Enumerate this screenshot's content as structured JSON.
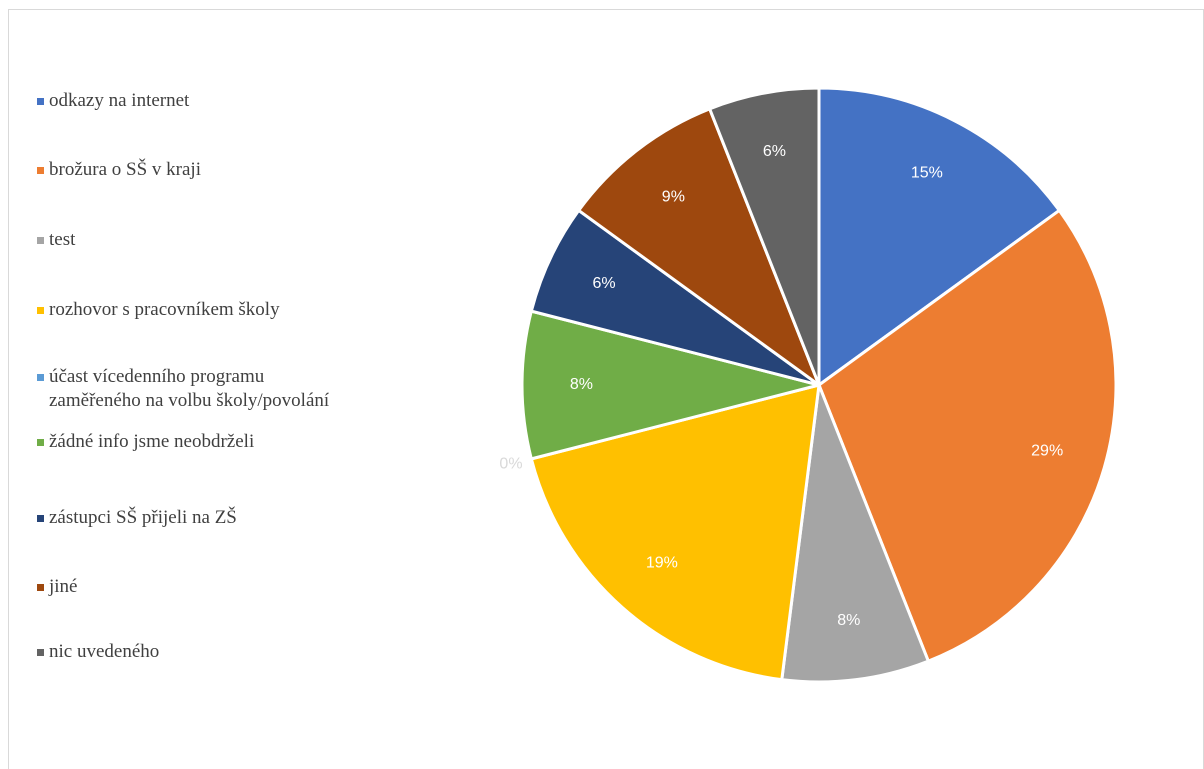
{
  "chart_data": {
    "type": "pie",
    "categories": [
      "odkazy na internet",
      "brožura o SŠ v kraji",
      "test",
      "rozhovor s pracovníkem školy",
      "účast vícedenního programu\nzaměřeného na volbu školy/povolání",
      "žádné info jsme neobdrželi",
      "zástupci SŠ přijeli na ZŠ",
      "jiné",
      "nic uvedeného"
    ],
    "values": [
      15,
      29,
      8,
      19,
      0,
      8,
      6,
      9,
      6
    ],
    "data_labels": [
      "15%",
      "29%",
      "8%",
      "19%",
      "0%",
      "8%",
      "6%",
      "9%",
      "6%"
    ],
    "colors": [
      "#4472C4",
      "#ED7D31",
      "#A5A5A5",
      "#FFC000",
      "#5B9BD5",
      "#70AD47",
      "#264478",
      "#9E480E",
      "#636363"
    ],
    "legend_position": "left"
  }
}
